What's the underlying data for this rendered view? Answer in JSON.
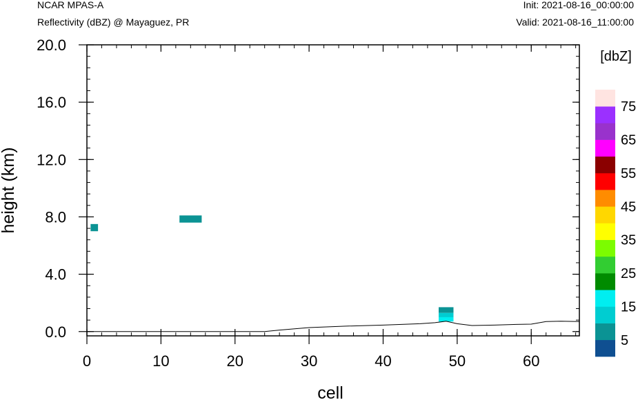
{
  "header": {
    "model": "NCAR MPAS-A",
    "field": "Reflectivity (dBZ) @ Mayaguez, PR",
    "init": "Init: 2021-08-16_00:00:00",
    "valid": "Valid: 2021-08-16_11:00:00"
  },
  "chart_data": {
    "type": "heatmap",
    "title": "Reflectivity (dBZ) @ Mayaguez, PR",
    "xlabel": "cell",
    "ylabel": "height (km)",
    "xlim": [
      0,
      66.5
    ],
    "ylim": [
      -0.3,
      20.0
    ],
    "x_ticks": [
      0,
      10,
      20,
      30,
      40,
      50,
      60
    ],
    "x_tick_labels": [
      "0",
      "10",
      "20",
      "30",
      "40",
      "50",
      "60"
    ],
    "y_ticks": [
      0,
      4,
      8,
      12,
      16,
      20
    ],
    "y_tick_labels": [
      "0.0",
      "4.0",
      "8.0",
      "12.0",
      "16.0",
      "20.0"
    ],
    "grid": false,
    "cells": [
      {
        "x0": 0.5,
        "x1": 1.5,
        "y0": 7.0,
        "y1": 7.5,
        "dbz": 5
      },
      {
        "x0": 12.5,
        "x1": 15.5,
        "y0": 7.6,
        "y1": 8.1,
        "dbz": 5
      },
      {
        "x0": 47.5,
        "x1": 49.5,
        "y0": 1.3,
        "y1": 1.7,
        "dbz": 5
      },
      {
        "x0": 47.5,
        "x1": 49.5,
        "y0": 1.0,
        "y1": 1.3,
        "dbz": 10
      },
      {
        "x0": 47.5,
        "x1": 49.5,
        "y0": 0.7,
        "y1": 1.0,
        "dbz": 15
      }
    ],
    "terrain": {
      "x": [
        0,
        10,
        20,
        24,
        26,
        30,
        35,
        40,
        45,
        47,
        48.5,
        50,
        52,
        55,
        58,
        60,
        62,
        64,
        66.5
      ],
      "y": [
        0.0,
        0.0,
        0.0,
        0.0,
        0.1,
        0.28,
        0.38,
        0.45,
        0.55,
        0.62,
        0.72,
        0.55,
        0.42,
        0.45,
        0.5,
        0.52,
        0.7,
        0.72,
        0.7
      ]
    },
    "colorbar": {
      "unit_label": "[dbZ]",
      "bounds": [
        0,
        5,
        10,
        15,
        20,
        25,
        30,
        35,
        40,
        45,
        50,
        55,
        60,
        65,
        70,
        75,
        80
      ],
      "colors": [
        "#0f4f91",
        "#0b9394",
        "#00cdd1",
        "#00eef0",
        "#008b00",
        "#32cd32",
        "#7cfc00",
        "#ffff00",
        "#ffd700",
        "#ff8c00",
        "#ff0000",
        "#8b0000",
        "#ff00ff",
        "#9932cc",
        "#9b30ff",
        "#ffe4e1"
      ],
      "tick_labels": [
        "5",
        "15",
        "25",
        "35",
        "45",
        "55",
        "65",
        "75"
      ],
      "label_values": [
        5,
        15,
        25,
        35,
        45,
        55,
        65,
        75
      ]
    }
  }
}
